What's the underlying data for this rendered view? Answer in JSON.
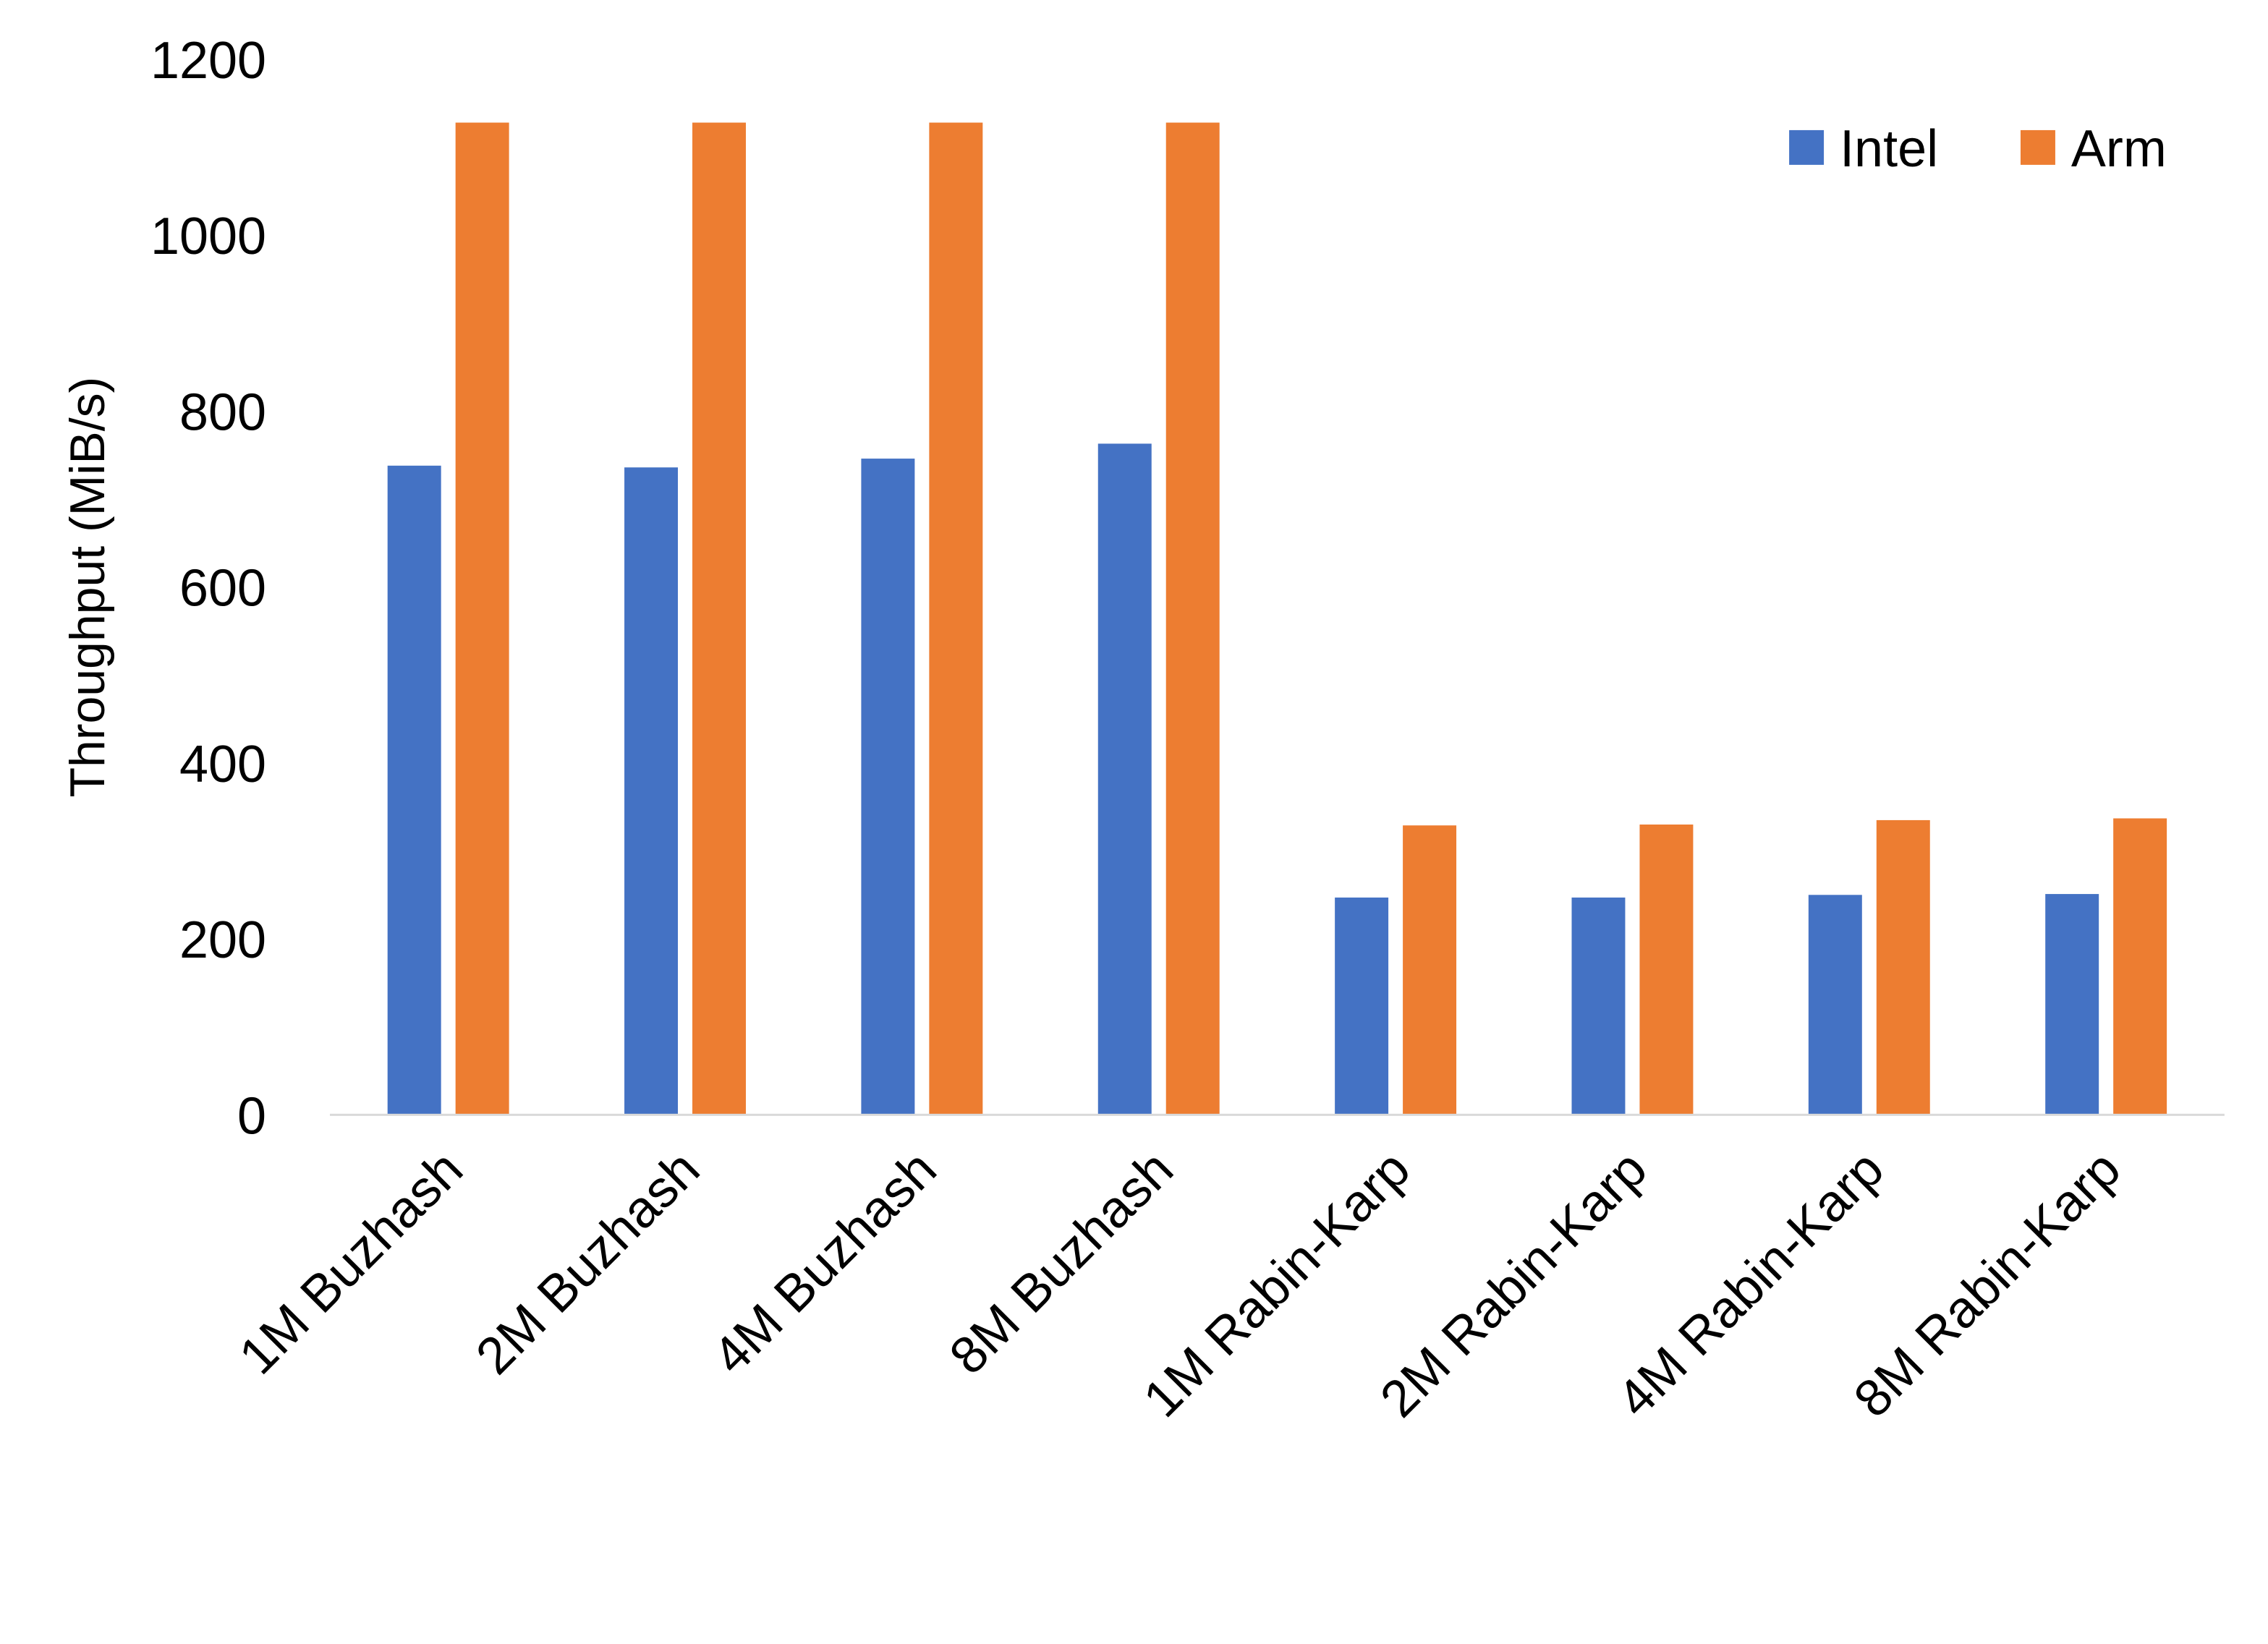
{
  "chart_data": {
    "type": "bar",
    "title": "",
    "xlabel": "",
    "ylabel": "Throughput (MiB/s)",
    "ylim": [
      0,
      1200
    ],
    "yticks": [
      0,
      200,
      400,
      600,
      800,
      1000,
      1200
    ],
    "grid": false,
    "legend_position": "top-right",
    "categories": [
      "1M Buzhash",
      "2M Buzhash",
      "4M Buzhash",
      "8M Buzhash",
      "1M Rabin-Karp",
      "2M Rabin-Karp",
      "4M Rabin-Karp",
      "8M Rabin-Karp"
    ],
    "series": [
      {
        "name": "Intel",
        "color": "#4472C4",
        "values": [
          738,
          736,
          746,
          763,
          247,
          247,
          250,
          251
        ]
      },
      {
        "name": "Arm",
        "color": "#ED7D31",
        "values": [
          1128,
          1128,
          1128,
          1128,
          329,
          330,
          335,
          337
        ]
      }
    ]
  }
}
